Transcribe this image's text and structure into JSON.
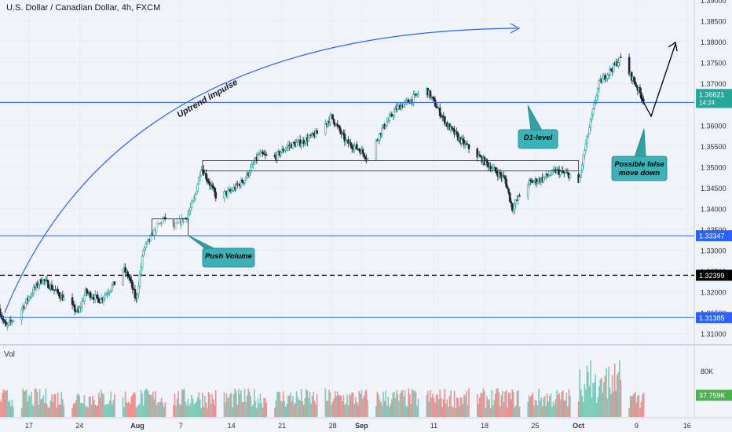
{
  "header": {
    "title": "U.S. Dollar / Canadian Dollar, 4h, FXCM",
    "vol_label": "Vol"
  },
  "chart_data": {
    "type": "candlestick",
    "symbol": "USDCAD",
    "timeframe": "4h",
    "ylim": [
      1.3075,
      1.39
    ],
    "price_ticks": [
      "1.39000",
      "1.38500",
      "1.38000",
      "1.37500",
      "1.37000",
      "1.36500",
      "1.36000",
      "1.35500",
      "1.35000",
      "1.34500",
      "1.34000",
      "1.33500",
      "1.33000",
      "1.32500",
      "1.32000",
      "1.31500",
      "1.31000"
    ],
    "x_ticks": [
      "17",
      "24",
      "Aug",
      "7",
      "14",
      "21",
      "28",
      "Sep",
      "11",
      "18",
      "25",
      "Oct",
      "9",
      "16"
    ],
    "x_tick_dates": [
      "2023-07-17",
      "2023-07-24",
      "2023-08-01",
      "2023-08-07",
      "2023-08-14",
      "2023-08-21",
      "2023-08-28",
      "2023-09-01",
      "2023-09-11",
      "2023-09-18",
      "2023-09-25",
      "2023-10-01",
      "2023-10-09",
      "2023-10-16"
    ],
    "date_range": [
      "2023-07-13",
      "2023-10-17"
    ],
    "price_path": [
      [
        "2023-07-13",
        1.316
      ],
      [
        "2023-07-14",
        1.3115
      ],
      [
        "2023-07-16",
        1.3155
      ],
      [
        "2023-07-18",
        1.321
      ],
      [
        "2023-07-19",
        1.323
      ],
      [
        "2023-07-21",
        1.32
      ],
      [
        "2023-07-24",
        1.315
      ],
      [
        "2023-07-25",
        1.32
      ],
      [
        "2023-07-27",
        1.318
      ],
      [
        "2023-07-29",
        1.322
      ],
      [
        "2023-07-30",
        1.326
      ],
      [
        "2023-07-31",
        1.3235
      ],
      [
        "2023-08-01",
        1.318
      ],
      [
        "2023-08-02",
        1.33
      ],
      [
        "2023-08-04",
        1.336
      ],
      [
        "2023-08-05",
        1.3375
      ],
      [
        "2023-08-06",
        1.335
      ],
      [
        "2023-08-08",
        1.338
      ],
      [
        "2023-08-09",
        1.342
      ],
      [
        "2023-08-10",
        1.35
      ],
      [
        "2023-08-12",
        1.343
      ],
      [
        "2023-08-14",
        1.344
      ],
      [
        "2023-08-16",
        1.347
      ],
      [
        "2023-08-18",
        1.353
      ],
      [
        "2023-08-20",
        1.352
      ],
      [
        "2023-08-22",
        1.355
      ],
      [
        "2023-08-24",
        1.356
      ],
      [
        "2023-08-26",
        1.358
      ],
      [
        "2023-08-28",
        1.362
      ],
      [
        "2023-08-30",
        1.356
      ],
      [
        "2023-09-01",
        1.354
      ],
      [
        "2023-09-02",
        1.352
      ],
      [
        "2023-09-04",
        1.359
      ],
      [
        "2023-09-06",
        1.364
      ],
      [
        "2023-09-08",
        1.366
      ],
      [
        "2023-09-10",
        1.369
      ],
      [
        "2023-09-11",
        1.366
      ],
      [
        "2023-09-13",
        1.36
      ],
      [
        "2023-09-15",
        1.356
      ],
      [
        "2023-09-17",
        1.353
      ],
      [
        "2023-09-19",
        1.35
      ],
      [
        "2023-09-21",
        1.347
      ],
      [
        "2023-09-22",
        1.34
      ],
      [
        "2023-09-24",
        1.346
      ],
      [
        "2023-09-26",
        1.347
      ],
      [
        "2023-09-28",
        1.349
      ],
      [
        "2023-09-30",
        1.348
      ],
      [
        "2023-10-01",
        1.344
      ],
      [
        "2023-10-02",
        1.354
      ],
      [
        "2023-10-03",
        1.362
      ],
      [
        "2023-10-04",
        1.37
      ],
      [
        "2023-10-05",
        1.372
      ],
      [
        "2023-10-06",
        1.374
      ],
      [
        "2023-10-07",
        1.376
      ],
      [
        "2023-10-08",
        1.373
      ],
      [
        "2023-10-09",
        1.37
      ],
      [
        "2023-10-10",
        1.3665
      ]
    ],
    "horizontal_levels": [
      {
        "price": 1.36545,
        "label": "1.36545",
        "style": "solid",
        "color": "#2962ff"
      },
      {
        "price": 1.33347,
        "label": "1.33347",
        "style": "solid",
        "color": "#2962ff"
      },
      {
        "price": 1.32399,
        "label": "1.32399",
        "style": "dashed",
        "color": "#000000"
      },
      {
        "price": 1.31385,
        "label": "1.31385",
        "style": "solid",
        "color": "#2962ff"
      }
    ],
    "current_price": {
      "label": "1.36621",
      "countdown": "14:24",
      "color": "#26a69a"
    },
    "zones": [
      {
        "from_date": "2023-08-10",
        "to_date": "2023-10-01",
        "top": 1.3515,
        "bottom": 1.349
      },
      {
        "from_date": "2023-08-03",
        "to_date": "2023-08-08",
        "top": 1.3375,
        "bottom": 1.3335
      }
    ],
    "annotations": {
      "uptrend": "Uptrend impulse",
      "d1_level": "D1-level",
      "push_volume": "Push Volume",
      "false_move": "Possible false move down"
    },
    "volume": {
      "scale_label": "80K",
      "current_label": "37.759K",
      "max_value": 110000
    }
  }
}
